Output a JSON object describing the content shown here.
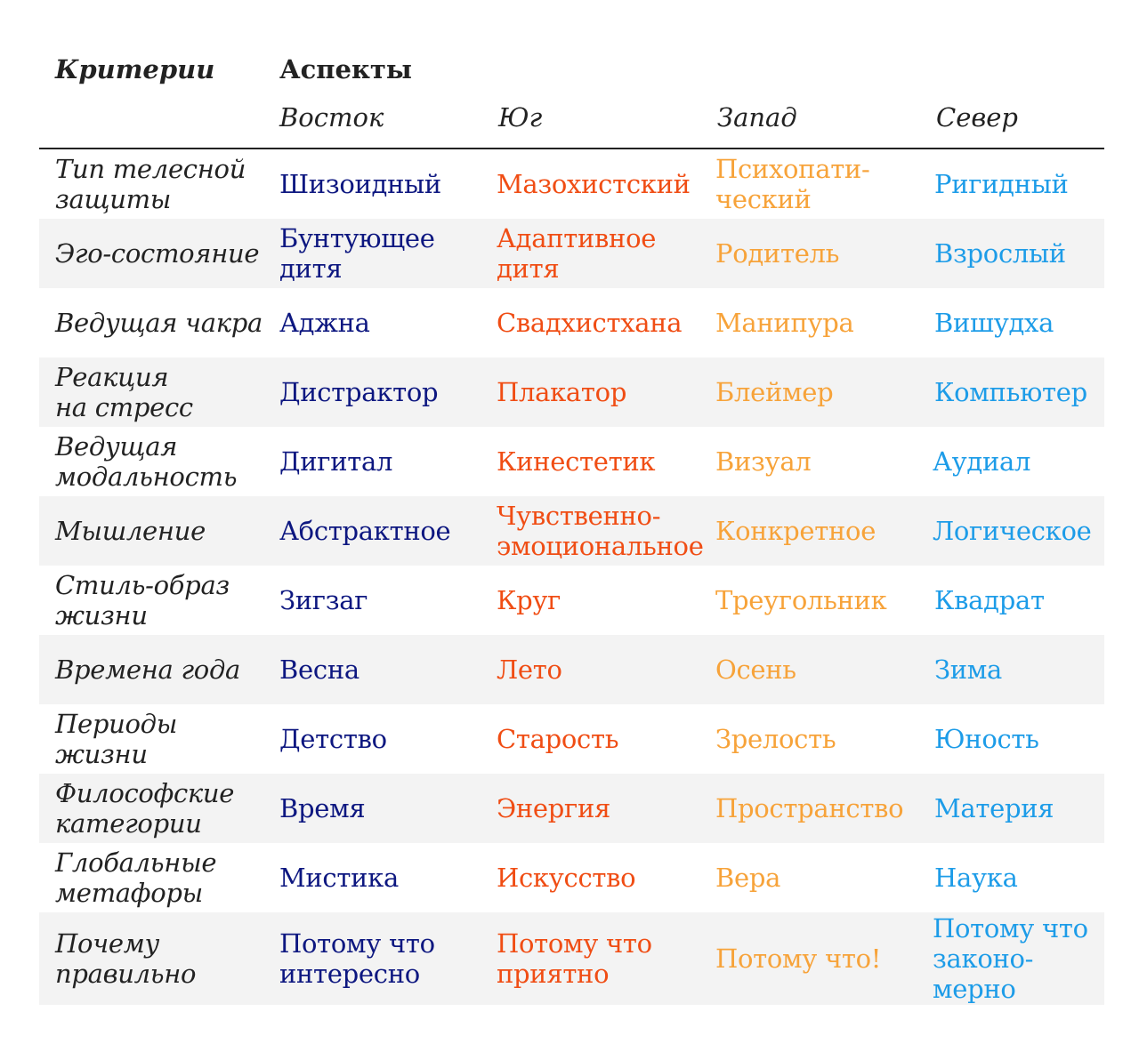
{
  "header": {
    "criteria_label": "Критерии",
    "aspects_label": "Аспекты",
    "directions": [
      "Восток",
      "Юг",
      "Запад",
      "Север"
    ]
  },
  "colors": {
    "east": "#0d1780",
    "south": "#f04d14",
    "west": "#f7a33a",
    "north": "#1d9ce8",
    "row_alt": "#f3f3f3",
    "text": "#222222"
  },
  "rows": [
    {
      "criterion": "Тип телесной защиты",
      "east": "Шизоидный",
      "south": "Мазохистский",
      "west": "Психопати-ческий",
      "north": "Ригидный"
    },
    {
      "criterion": "Эго-состояние",
      "east": "Бунтующее дитя",
      "south": "Адаптивное дитя",
      "west": "Родитель",
      "north": "Взрослый"
    },
    {
      "criterion": "Ведущая чакра",
      "east": "Аджна",
      "south": "Свадхистхана",
      "west": "Манипура",
      "north": "Вишудха"
    },
    {
      "criterion": "Реакция на стресс",
      "east": "Дистрактор",
      "south": "Плакатор",
      "west": "Блеймер",
      "north": "Компьютер"
    },
    {
      "criterion": "Ведущая модальность",
      "east": "Дигитал",
      "south": "Кинестетик",
      "west": "Визуал",
      "north": "Аудиал"
    },
    {
      "criterion": "Мышление",
      "east": "Абстрактное",
      "south": "Чувственно-эмоциональное",
      "west": "Конкретное",
      "north": "Логическое"
    },
    {
      "criterion": "Стиль-образ жизни",
      "east": "Зигзаг",
      "south": "Круг",
      "west": "Треугольник",
      "north": "Квадрат"
    },
    {
      "criterion": "Времена года",
      "east": "Весна",
      "south": "Лето",
      "west": "Осень",
      "north": "Зима"
    },
    {
      "criterion": "Периоды жизни",
      "east": "Детство",
      "south": "Старость",
      "west": "Зрелость",
      "north": "Юность"
    },
    {
      "criterion": "Философские категории",
      "east": "Время",
      "south": "Энергия",
      "west": "Пространство",
      "north": "Материя"
    },
    {
      "criterion": "Глобальные метафоры",
      "east": "Мистика",
      "south": "Искусство",
      "west": "Вера",
      "north": "Наука"
    },
    {
      "criterion": "Почему правильно",
      "east": "Потому что интересно",
      "south": "Потому что приятно",
      "west": "Потому что!",
      "north": "Потому что законо-мерно"
    }
  ]
}
